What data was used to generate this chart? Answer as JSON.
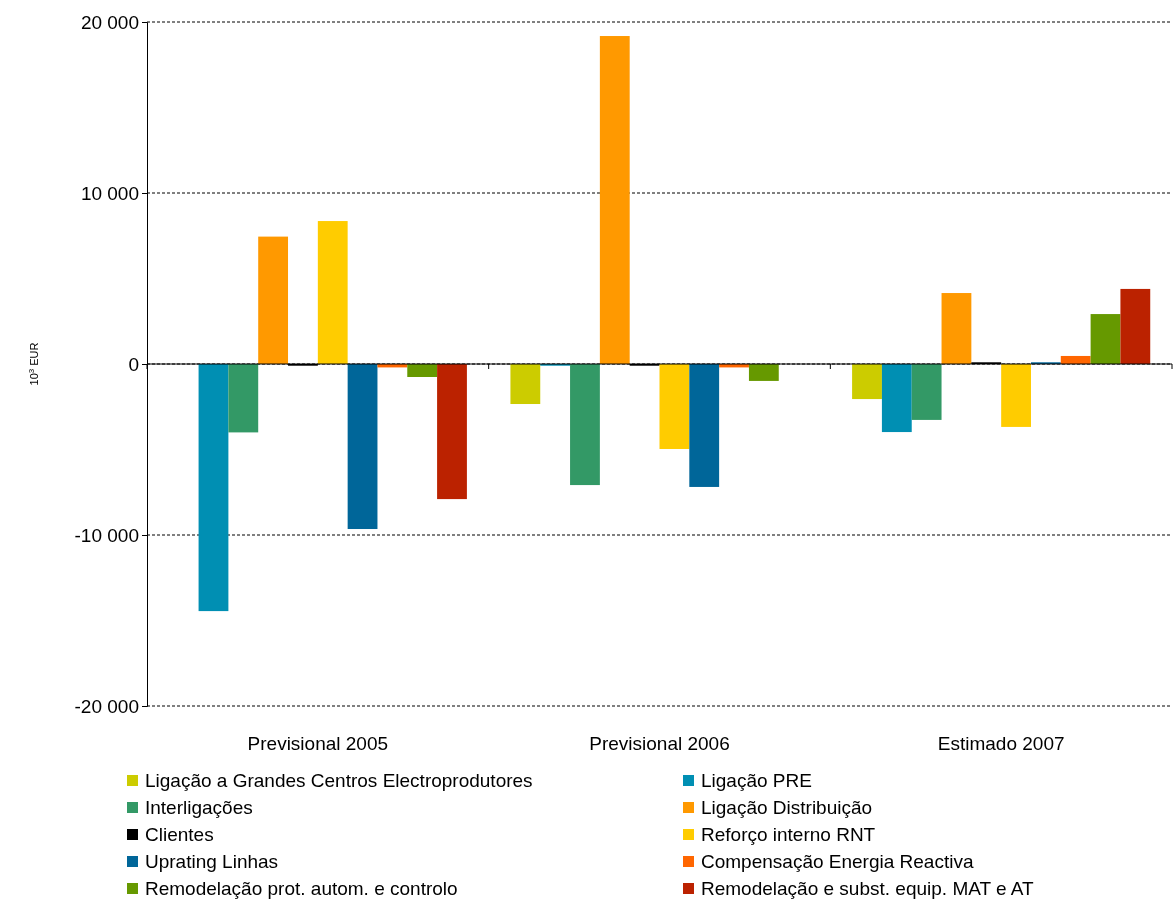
{
  "chart_data": {
    "type": "bar",
    "ylabel": "10$^{3}$ EUR",
    "categories": [
      "Previsional 2005",
      "Previsional 2006",
      "Estimado 2007"
    ],
    "series": [
      {
        "name": "Ligação a Grandes Centros Electroprodutores",
        "color": "#cccc00",
        "values": [
          0,
          -2340,
          -2050
        ]
      },
      {
        "name": "Ligação PRE",
        "color": "#008fb3",
        "values": [
          -14450,
          -100,
          -3980
        ]
      },
      {
        "name": "Interligações",
        "color": "#339966",
        "values": [
          -4000,
          -7080,
          -3270
        ]
      },
      {
        "name": "Ligação Distribuição",
        "color": "#ff9900",
        "values": [
          7450,
          19180,
          4150
        ]
      },
      {
        "name": "Clientes",
        "color": "#000000",
        "values": [
          -100,
          -100,
          100
        ]
      },
      {
        "name": "Reforço interno RNT",
        "color": "#ffcc00",
        "values": [
          8360,
          -4970,
          -3680
        ]
      },
      {
        "name": "Uprating Linhas",
        "color": "#006699",
        "values": [
          -9650,
          -7190,
          100
        ]
      },
      {
        "name": "Compensação Energia Reactiva",
        "color": "#ff6600",
        "values": [
          -200,
          -200,
          470
        ]
      },
      {
        "name": "Remodelação prot. autom. e controlo",
        "color": "#669900",
        "values": [
          -760,
          -990,
          2920
        ]
      },
      {
        "name": "Remodelação e subst. equip. MAT e AT",
        "color": "#bb2200",
        "values": [
          -7900,
          0,
          4390
        ]
      }
    ],
    "ylim": [
      -20000,
      20000
    ],
    "yticks": [
      {
        "value": -20000,
        "label": "-20 000"
      },
      {
        "value": -10000,
        "label": "-10 000"
      },
      0,
      {
        "value": 10000,
        "label": "10 000"
      },
      {
        "value": 20000,
        "label": "20 000"
      }
    ],
    "grid": "y",
    "legend": "bottom"
  }
}
